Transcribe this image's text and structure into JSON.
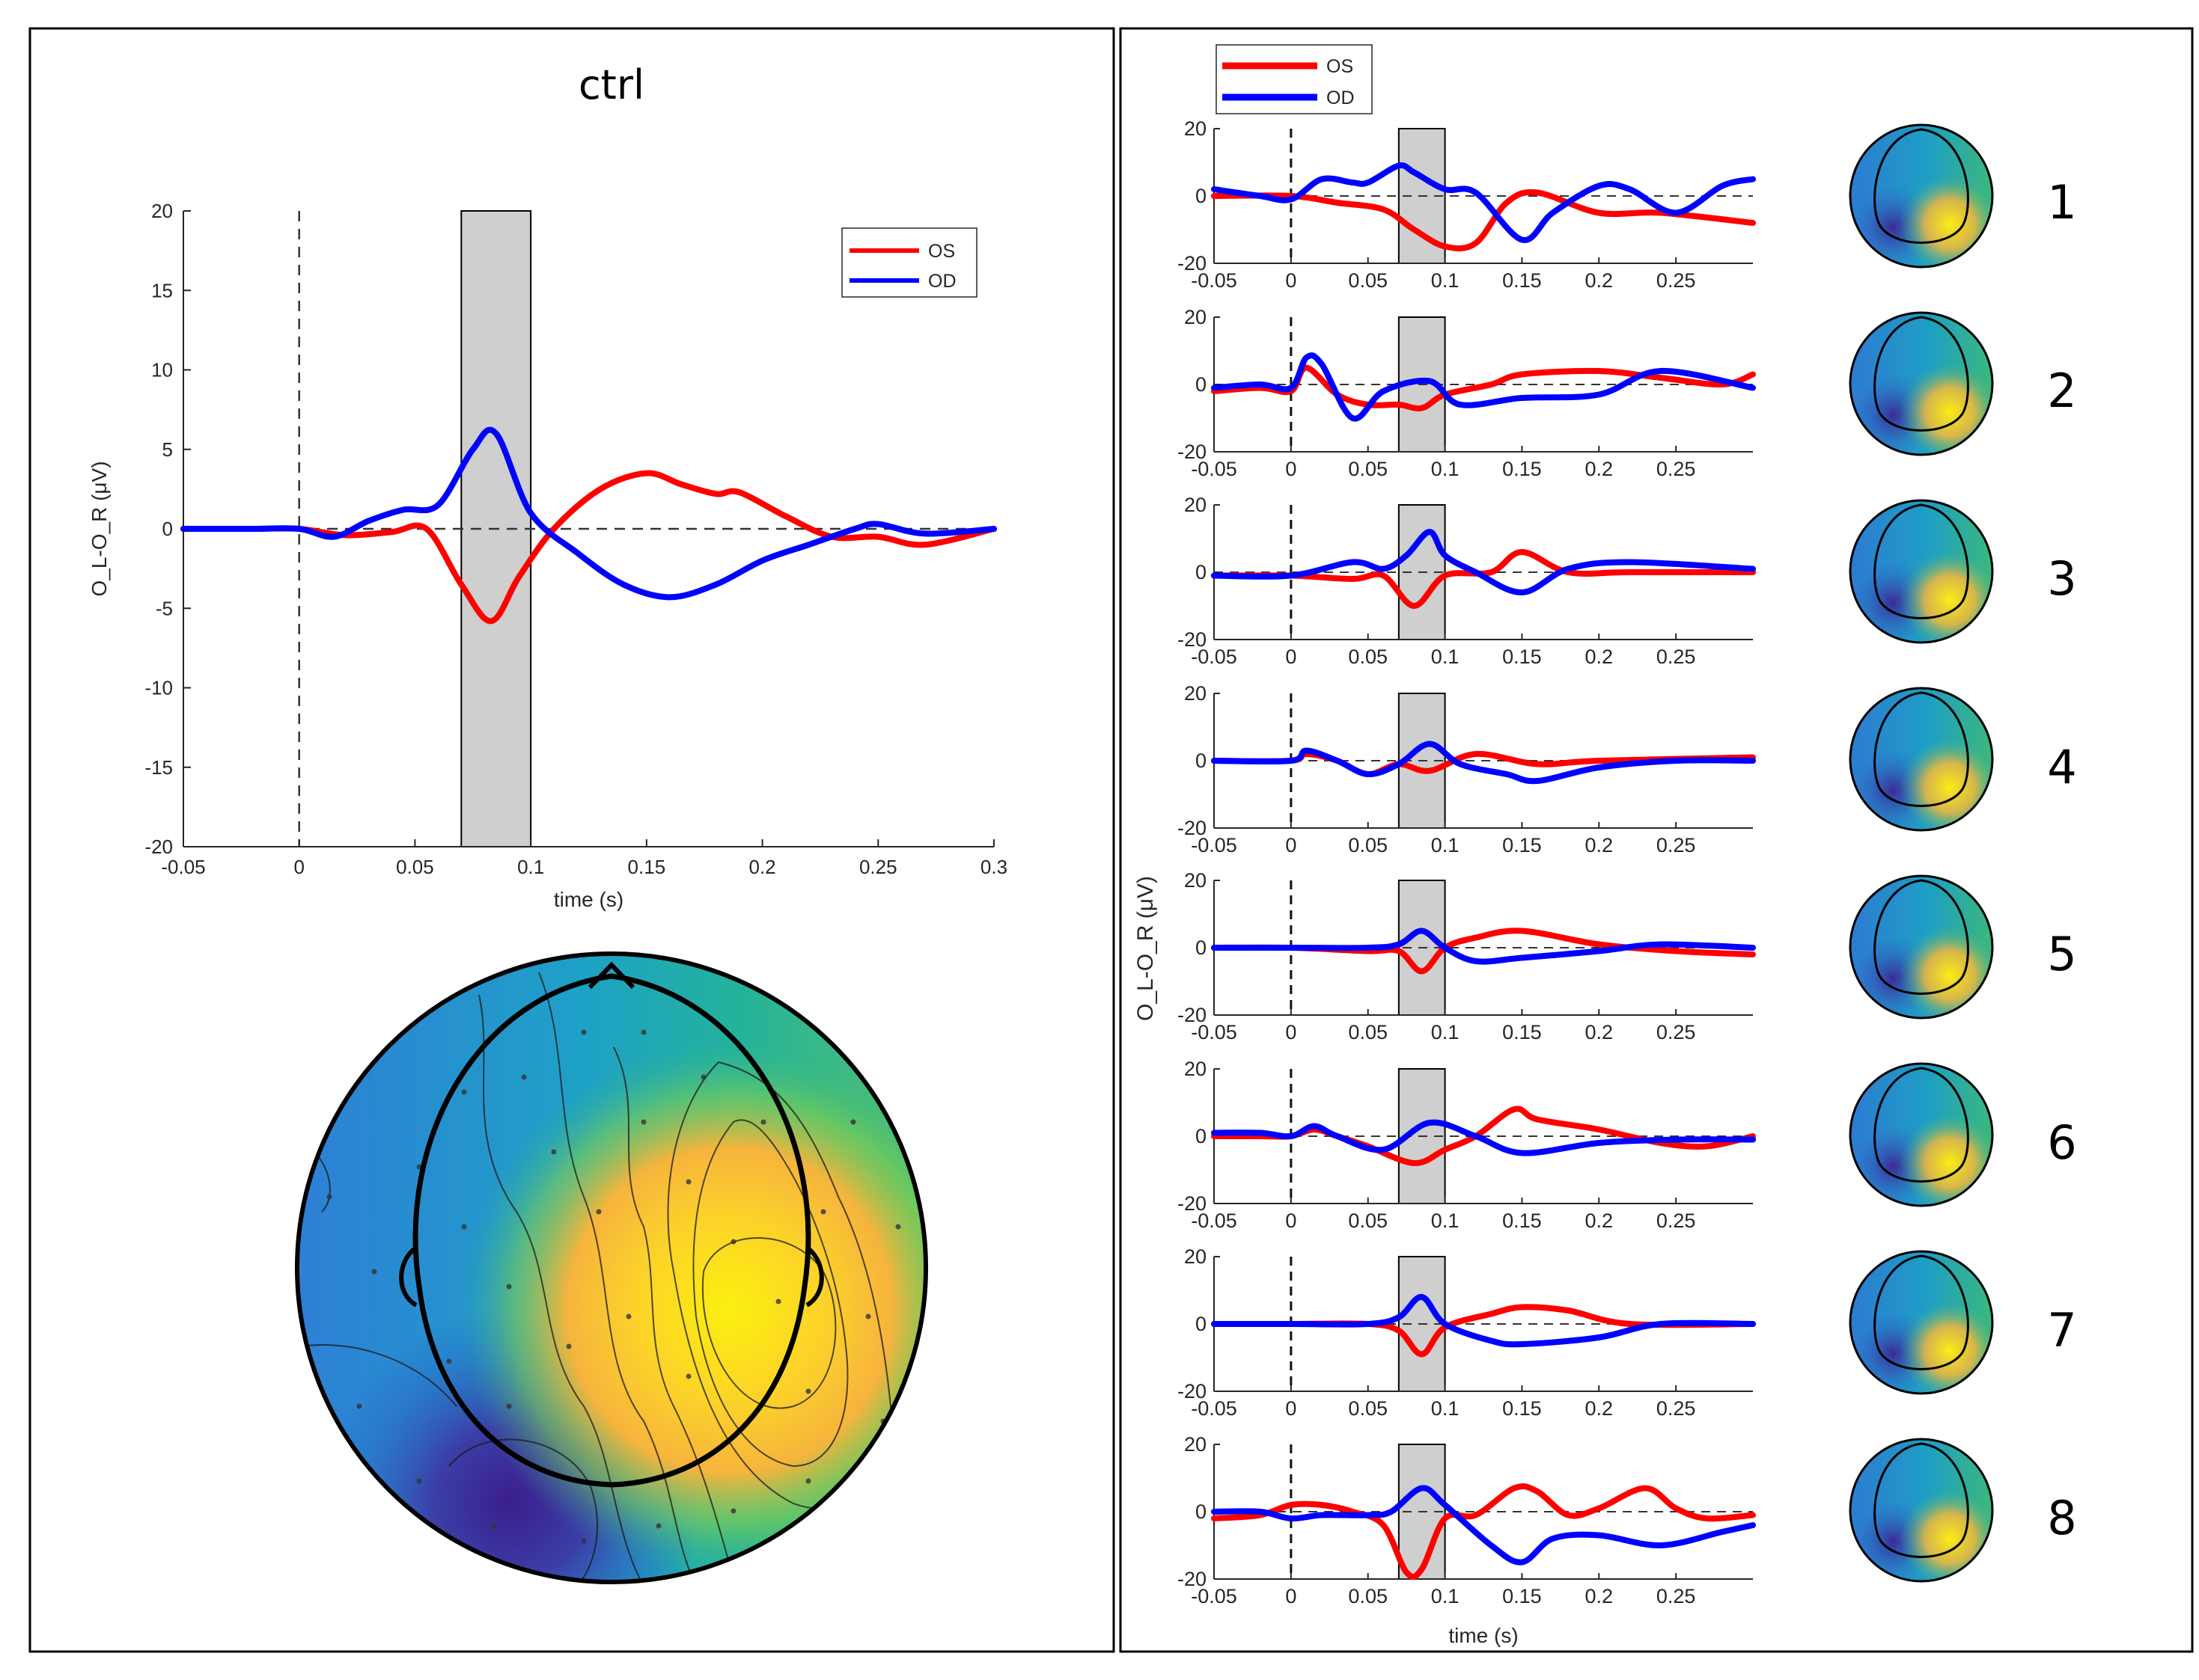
{
  "chart_data": [
    {
      "type": "line",
      "panel": "left",
      "title": "ctrl",
      "xlabel": "time (s)",
      "ylabel": "O_L-O_R (μV)",
      "xlim": [
        -0.05,
        0.3
      ],
      "ylim": [
        -20,
        20
      ],
      "xticks": [
        -0.05,
        0,
        0.05,
        0.1,
        0.15,
        0.2,
        0.25,
        0.3
      ],
      "xtick_labels": [
        "-0.05",
        "0",
        "0.05",
        "0.1",
        "0.15",
        "0.2",
        "0.25",
        "0.3"
      ],
      "yticks": [
        -20,
        -15,
        -10,
        -5,
        0,
        5,
        10,
        15,
        20
      ],
      "ytick_labels": [
        "-20",
        "-15",
        "-10",
        "-5",
        "0",
        "5",
        "10",
        "15",
        "20"
      ],
      "shaded_window": [
        0.07,
        0.1
      ],
      "legend": [
        "OS",
        "OD"
      ],
      "legend_position": "top-right",
      "series": [
        {
          "name": "OS",
          "color": "#ff0000",
          "x": [
            -0.05,
            -0.02,
            0,
            0.02,
            0.04,
            0.055,
            0.07,
            0.083,
            0.095,
            0.11,
            0.13,
            0.15,
            0.165,
            0.18,
            0.19,
            0.21,
            0.23,
            0.25,
            0.27,
            0.3
          ],
          "y": [
            0,
            0,
            0,
            -0.4,
            -0.2,
            0,
            -3.5,
            -5.8,
            -3,
            0,
            2.5,
            3.5,
            2.8,
            2.2,
            2.3,
            0.8,
            -0.5,
            -0.5,
            -1,
            0
          ]
        },
        {
          "name": "OD",
          "color": "#0000ff",
          "x": [
            -0.05,
            -0.02,
            0,
            0.015,
            0.03,
            0.045,
            0.06,
            0.075,
            0.085,
            0.1,
            0.12,
            0.14,
            0.16,
            0.18,
            0.2,
            0.22,
            0.24,
            0.25,
            0.27,
            0.3
          ],
          "y": [
            0,
            0,
            0,
            -0.5,
            0.5,
            1.2,
            1.5,
            5,
            6,
            1,
            -1.5,
            -3.5,
            -4.3,
            -3.5,
            -2,
            -1,
            0,
            0.3,
            -0.3,
            0
          ]
        }
      ]
    },
    {
      "type": "line",
      "panel": "right",
      "xlabel": "time (s)",
      "ylabel": "O_L-O_R (μV)",
      "xlim": [
        -0.05,
        0.3
      ],
      "ylim": [
        -20,
        20
      ],
      "xticks": [
        -0.05,
        0,
        0.05,
        0.1,
        0.15,
        0.2,
        0.25
      ],
      "xtick_labels": [
        "-0.05",
        "0",
        "0.05",
        "0.1",
        "0.15",
        "0.2",
        "0.25"
      ],
      "yticks": [
        -20,
        0,
        20
      ],
      "ytick_labels": [
        "-20",
        "0",
        "20"
      ],
      "shaded_window": [
        0.07,
        0.1
      ],
      "legend": [
        "OS",
        "OD"
      ],
      "legend_position": "top-left",
      "subplots": [
        {
          "label": "1",
          "OS": {
            "x": [
              -0.05,
              0,
              0.03,
              0.06,
              0.08,
              0.1,
              0.12,
              0.14,
              0.16,
              0.2,
              0.24,
              0.3
            ],
            "y": [
              0,
              0,
              -2,
              -4,
              -10,
              -15,
              -14,
              -2,
              1,
              -5,
              -5,
              -8
            ]
          },
          "OD": {
            "x": [
              -0.05,
              -0.02,
              0,
              0.02,
              0.04,
              0.05,
              0.07,
              0.08,
              0.1,
              0.12,
              0.15,
              0.17,
              0.2,
              0.22,
              0.25,
              0.28,
              0.3
            ],
            "y": [
              2,
              0,
              -1,
              5,
              4,
              4,
              9,
              7,
              2,
              1,
              -13,
              -5,
              3,
              2,
              -5,
              3,
              5
            ]
          }
        },
        {
          "label": "2",
          "OS": {
            "x": [
              -0.05,
              -0.02,
              0,
              0.01,
              0.03,
              0.05,
              0.07,
              0.085,
              0.1,
              0.13,
              0.15,
              0.2,
              0.24,
              0.28,
              0.3
            ],
            "y": [
              -2,
              -1,
              -2,
              5,
              -3,
              -6,
              -6,
              -7,
              -3,
              0,
              3,
              4,
              2,
              0,
              3
            ]
          },
          "OD": {
            "x": [
              -0.05,
              -0.02,
              0,
              0.01,
              0.02,
              0.04,
              0.06,
              0.09,
              0.11,
              0.15,
              0.2,
              0.24,
              0.3
            ],
            "y": [
              -1,
              0,
              -1,
              8,
              6,
              -10,
              -2,
              1,
              -6,
              -4,
              -3,
              4,
              -1
            ]
          }
        },
        {
          "label": "3",
          "OS": {
            "x": [
              -0.05,
              0,
              0.04,
              0.06,
              0.08,
              0.1,
              0.13,
              0.15,
              0.18,
              0.22,
              0.3
            ],
            "y": [
              -1,
              -1,
              -2,
              -1,
              -10,
              -1,
              0,
              6,
              0,
              0,
              0
            ]
          },
          "OD": {
            "x": [
              -0.05,
              0,
              0.04,
              0.06,
              0.075,
              0.09,
              0.1,
              0.12,
              0.15,
              0.18,
              0.22,
              0.3
            ],
            "y": [
              -1,
              -1,
              3,
              1,
              5,
              12,
              5,
              0,
              -6,
              1,
              3,
              1
            ]
          }
        },
        {
          "label": "4",
          "OS": {
            "x": [
              -0.05,
              0,
              0.01,
              0.03,
              0.05,
              0.07,
              0.09,
              0.12,
              0.16,
              0.2,
              0.3
            ],
            "y": [
              0,
              0,
              2,
              0,
              -4,
              -1,
              -3,
              2,
              -1,
              0,
              1
            ]
          },
          "OD": {
            "x": [
              -0.05,
              0,
              0.01,
              0.03,
              0.05,
              0.07,
              0.09,
              0.11,
              0.14,
              0.16,
              0.2,
              0.25,
              0.3
            ],
            "y": [
              0,
              0,
              3,
              0,
              -4,
              -1,
              5,
              -1,
              -4,
              -6,
              -2,
              0,
              0
            ]
          }
        },
        {
          "label": "5",
          "OS": {
            "x": [
              -0.05,
              0,
              0.05,
              0.07,
              0.085,
              0.1,
              0.12,
              0.15,
              0.2,
              0.25,
              0.3
            ],
            "y": [
              0,
              0,
              -1,
              -1,
              -7,
              0,
              3,
              5,
              1,
              -1,
              -2
            ]
          },
          "OD": {
            "x": [
              -0.05,
              0,
              0.05,
              0.07,
              0.085,
              0.1,
              0.12,
              0.15,
              0.2,
              0.24,
              0.3
            ],
            "y": [
              0,
              0,
              0,
              1,
              5,
              0,
              -4,
              -3,
              -1,
              1,
              0
            ]
          }
        },
        {
          "label": "6",
          "OS": {
            "x": [
              -0.05,
              -0.02,
              0,
              0.015,
              0.03,
              0.05,
              0.08,
              0.1,
              0.12,
              0.145,
              0.16,
              0.2,
              0.24,
              0.27,
              0.3
            ],
            "y": [
              0,
              0,
              0,
              2,
              0,
              -3,
              -8,
              -4,
              0,
              8,
              5,
              2,
              -2,
              -3,
              0
            ]
          },
          "OD": {
            "x": [
              -0.05,
              -0.02,
              0,
              0.015,
              0.03,
              0.06,
              0.09,
              0.12,
              0.15,
              0.2,
              0.25,
              0.3
            ],
            "y": [
              1,
              1,
              0,
              3,
              0,
              -4,
              4,
              0,
              -5,
              -2,
              -1,
              -1
            ]
          }
        },
        {
          "label": "7",
          "OS": {
            "x": [
              -0.05,
              0,
              0.05,
              0.07,
              0.085,
              0.1,
              0.13,
              0.15,
              0.18,
              0.22,
              0.3
            ],
            "y": [
              0,
              0,
              0,
              -2,
              -9,
              -1,
              3,
              5,
              4,
              0,
              0
            ]
          },
          "OD": {
            "x": [
              -0.05,
              0,
              0.05,
              0.07,
              0.085,
              0.1,
              0.13,
              0.15,
              0.2,
              0.24,
              0.3
            ],
            "y": [
              0,
              0,
              0,
              2,
              8,
              0,
              -5,
              -6,
              -4,
              0,
              0
            ]
          }
        },
        {
          "label": "8",
          "OS": {
            "x": [
              -0.05,
              -0.02,
              0,
              0.02,
              0.04,
              0.06,
              0.075,
              0.085,
              0.1,
              0.12,
              0.145,
              0.16,
              0.18,
              0.2,
              0.23,
              0.25,
              0.27,
              0.3
            ],
            "y": [
              -2,
              -1,
              2,
              2,
              0,
              -4,
              -18,
              -17,
              -2,
              -1,
              7,
              6,
              -1,
              1,
              7,
              1,
              -2,
              -1
            ]
          },
          "OD": {
            "x": [
              -0.05,
              -0.02,
              0,
              0.02,
              0.05,
              0.065,
              0.085,
              0.1,
              0.13,
              0.15,
              0.17,
              0.2,
              0.24,
              0.28,
              0.3
            ],
            "y": [
              0,
              0,
              -2,
              -1,
              -1,
              0,
              7,
              2,
              -10,
              -15,
              -8,
              -7,
              -10,
              -6,
              -4
            ]
          }
        }
      ]
    }
  ]
}
